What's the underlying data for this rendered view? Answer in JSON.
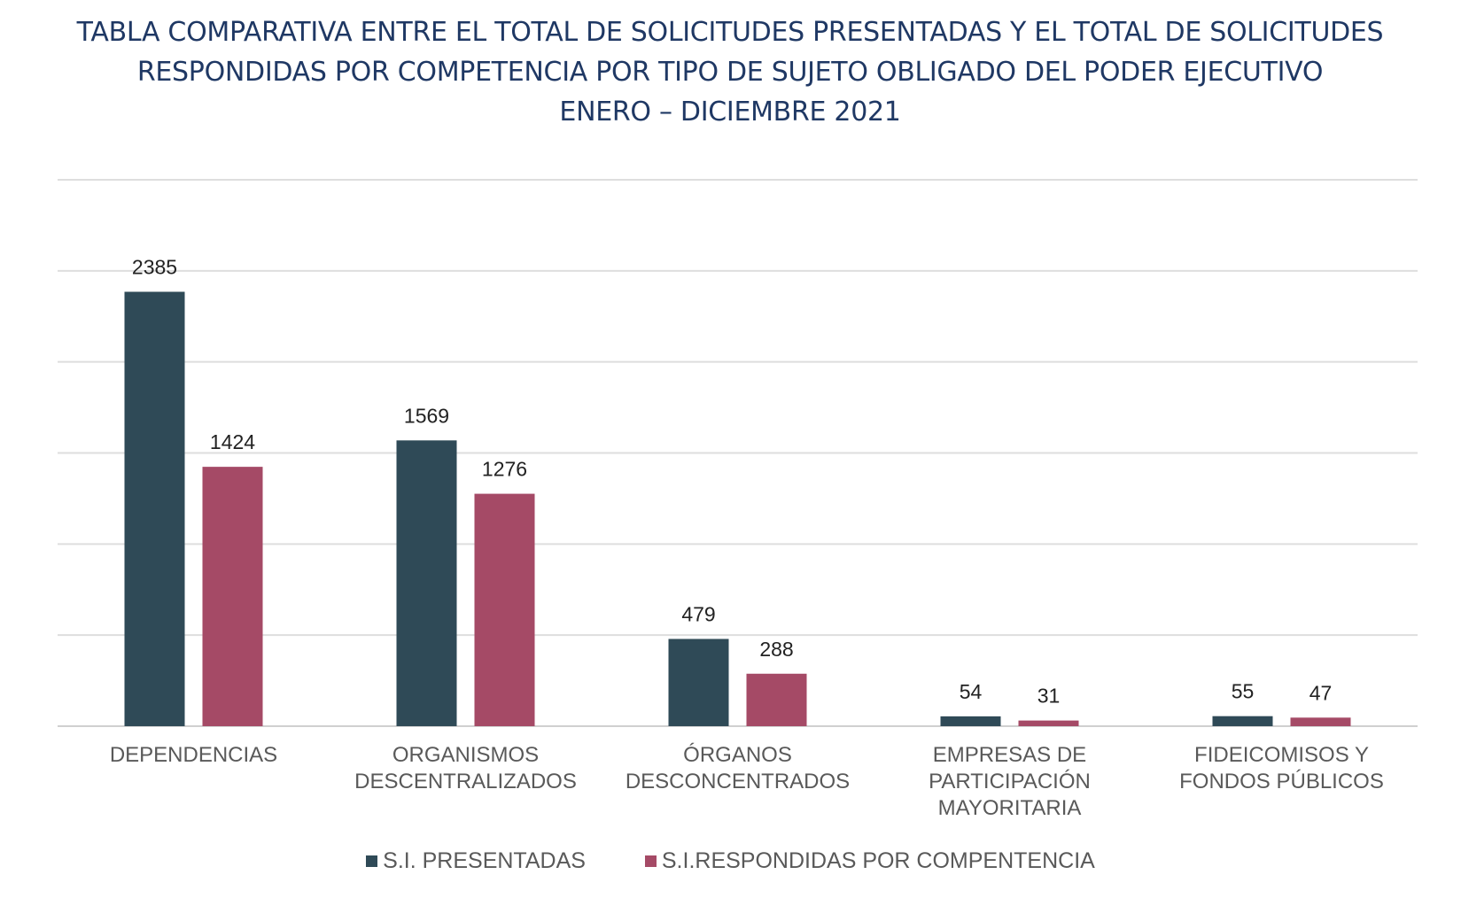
{
  "chart_data": {
    "type": "bar",
    "title_lines": [
      "TABLA COMPARATIVA ENTRE EL TOTAL DE SOLICITUDES PRESENTADAS Y EL TOTAL DE SOLICITUDES",
      "RESPONDIDAS POR COMPETENCIA POR TIPO DE SUJETO OBLIGADO DEL PODER EJECUTIVO",
      "ENERO – DICIEMBRE 2021"
    ],
    "categories": [
      [
        "DEPENDENCIAS"
      ],
      [
        "ORGANISMOS",
        "DESCENTRALIZADOS"
      ],
      [
        "ÓRGANOS",
        "DESCONCENTRADOS"
      ],
      [
        "EMPRESAS DE",
        "PARTICIPACIÓN",
        "MAYORITARIA"
      ],
      [
        "FIDEICOMISOS Y",
        "FONDOS PÚBLICOS"
      ]
    ],
    "series": [
      {
        "name": "S.I. PRESENTADAS",
        "color": "#2f4a57",
        "values": [
          2385,
          1569,
          479,
          54,
          55
        ]
      },
      {
        "name": "S.I.RESPONDIDAS POR COMPENTENCIA",
        "color": "#a54a66",
        "values": [
          1424,
          1276,
          288,
          31,
          47
        ]
      }
    ],
    "ylim": [
      0,
      3000
    ],
    "yticks": [
      0,
      500,
      1000,
      1500,
      2000,
      2500,
      3000
    ],
    "grid": true,
    "y_tick_labels_shown": false,
    "data_labels": true,
    "legend_position": "bottom"
  }
}
